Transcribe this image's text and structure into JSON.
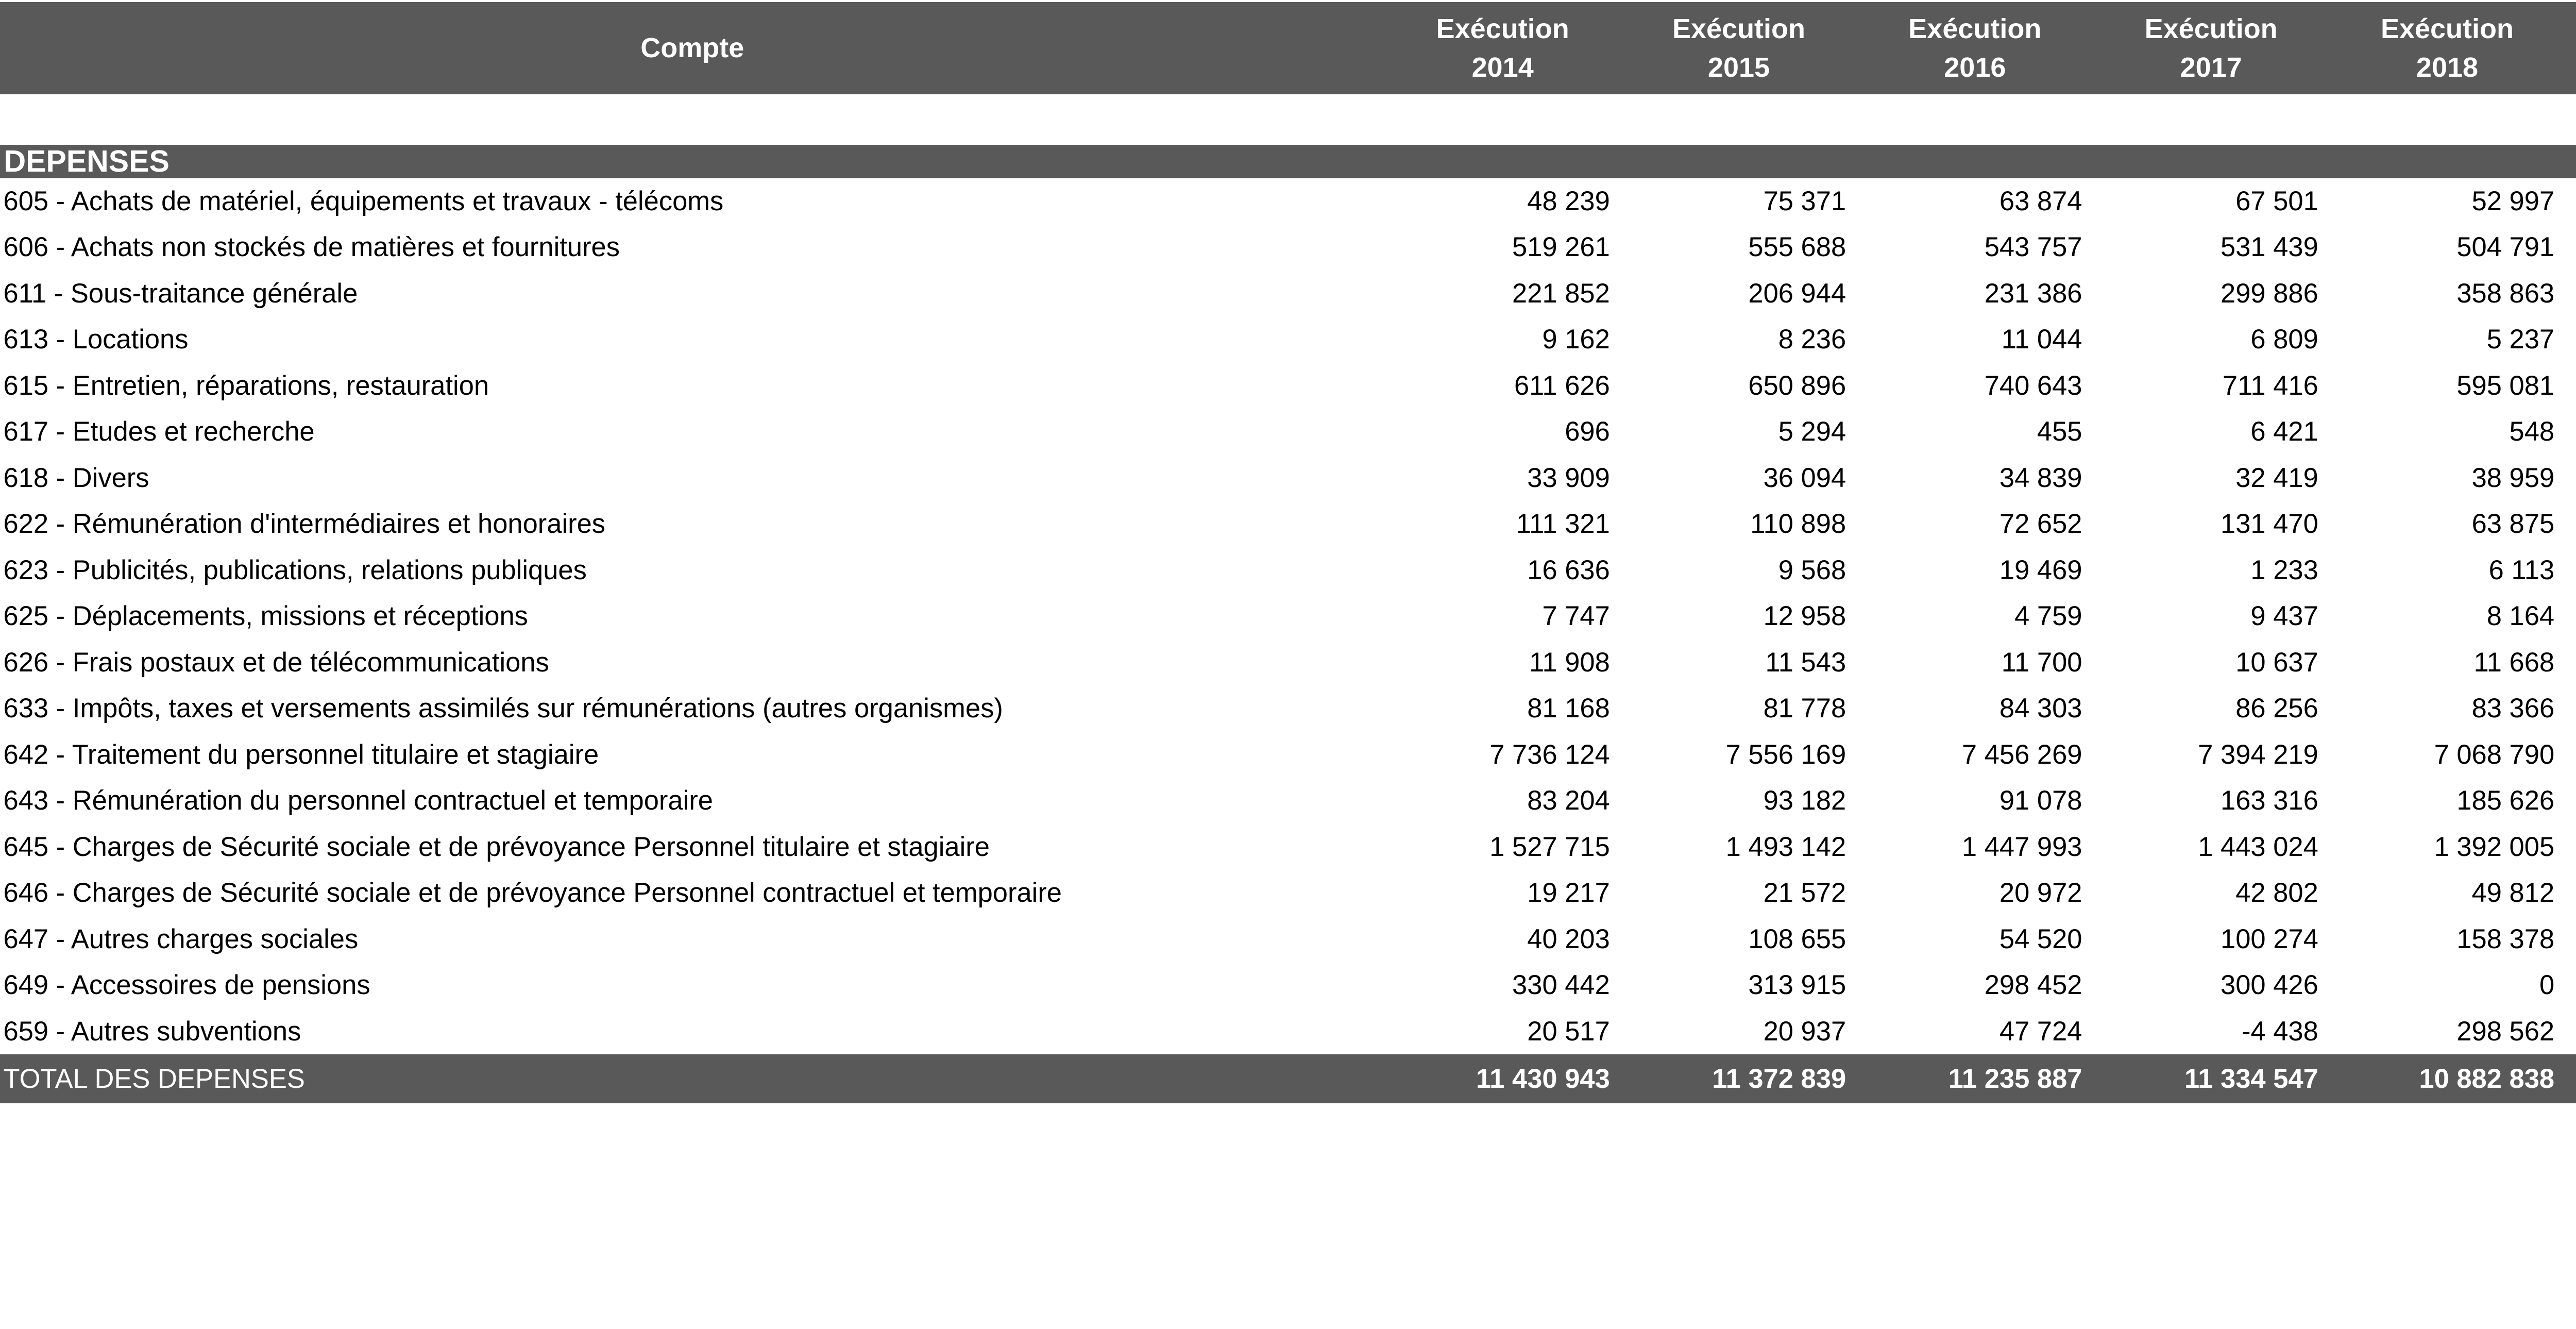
{
  "colors": {
    "header_bg": "#595959",
    "header_text": "#ffffff",
    "body_text": "#000000",
    "page_bg": "#ffffff"
  },
  "table": {
    "header": {
      "compte": "Compte",
      "years": [
        {
          "line1": "Exécution",
          "line2": "2014"
        },
        {
          "line1": "Exécution",
          "line2": "2015"
        },
        {
          "line1": "Exécution",
          "line2": "2016"
        },
        {
          "line1": "Exécution",
          "line2": "2017"
        },
        {
          "line1": "Exécution",
          "line2": "2018"
        }
      ]
    },
    "section": "DEPENSES",
    "rows": [
      {
        "label": "605 - Achats de matériel, équipements et travaux - télécoms",
        "values": [
          "48 239",
          "75 371",
          "63 874",
          "67 501",
          "52 997"
        ]
      },
      {
        "label": "606 - Achats non stockés de matières et fournitures",
        "values": [
          "519 261",
          "555 688",
          "543 757",
          "531 439",
          "504 791"
        ]
      },
      {
        "label": "611 - Sous-traitance générale",
        "values": [
          "221 852",
          "206 944",
          "231 386",
          "299 886",
          "358 863"
        ]
      },
      {
        "label": "613 - Locations",
        "values": [
          "9 162",
          "8 236",
          "11 044",
          "6 809",
          "5 237"
        ]
      },
      {
        "label": "615 - Entretien, réparations, restauration",
        "values": [
          "611 626",
          "650 896",
          "740 643",
          "711 416",
          "595 081"
        ]
      },
      {
        "label": "617 - Etudes et recherche",
        "values": [
          "696",
          "5 294",
          "455",
          "6 421",
          "548"
        ]
      },
      {
        "label": "618 - Divers",
        "values": [
          "33 909",
          "36 094",
          "34 839",
          "32 419",
          "38 959"
        ]
      },
      {
        "label": "622 - Rémunération d'intermédiaires et honoraires",
        "values": [
          "111 321",
          "110 898",
          "72 652",
          "131 470",
          "63 875"
        ]
      },
      {
        "label": "623 - Publicités, publications, relations publiques",
        "values": [
          "16 636",
          "9 568",
          "19 469",
          "1 233",
          "6 113"
        ]
      },
      {
        "label": "625 - Déplacements, missions et réceptions",
        "values": [
          "7 747",
          "12 958",
          "4 759",
          "9 437",
          "8 164"
        ]
      },
      {
        "label": "626 - Frais postaux et de télécommunications",
        "values": [
          "11 908",
          "11 543",
          "11 700",
          "10 637",
          "11 668"
        ]
      },
      {
        "label": "633 - Impôts, taxes et versements assimilés sur rémunérations (autres organismes)",
        "values": [
          "81 168",
          "81 778",
          "84 303",
          "86 256",
          "83 366"
        ]
      },
      {
        "label": "642 - Traitement du personnel titulaire et stagiaire",
        "values": [
          "7 736 124",
          "7 556 169",
          "7 456 269",
          "7 394 219",
          "7 068 790"
        ]
      },
      {
        "label": "643 - Rémunération du personnel contractuel et temporaire",
        "values": [
          "83 204",
          "93 182",
          "91 078",
          "163 316",
          "185 626"
        ]
      },
      {
        "label": "645 - Charges de Sécurité sociale et de prévoyance Personnel titulaire et stagiaire",
        "values": [
          "1 527 715",
          "1 493 142",
          "1 447 993",
          "1 443 024",
          "1 392 005"
        ]
      },
      {
        "label": "646 - Charges de Sécurité sociale et de prévoyance Personnel contractuel et temporaire",
        "values": [
          "19 217",
          "21 572",
          "20 972",
          "42 802",
          "49 812"
        ]
      },
      {
        "label": "647 - Autres charges sociales",
        "values": [
          "40 203",
          "108 655",
          "54 520",
          "100 274",
          "158 378"
        ]
      },
      {
        "label": "649 - Accessoires de pensions",
        "values": [
          "330 442",
          "313 915",
          "298 452",
          "300 426",
          "0"
        ]
      },
      {
        "label": "659 - Autres subventions",
        "values": [
          "20 517",
          "20 937",
          "47 724",
          "-4 438",
          "298 562"
        ]
      }
    ],
    "total": {
      "label": "TOTAL DES DEPENSES",
      "values": [
        "11 430 943",
        "11 372 839",
        "11 235 887",
        "11 334 547",
        "10 882 838"
      ]
    }
  }
}
